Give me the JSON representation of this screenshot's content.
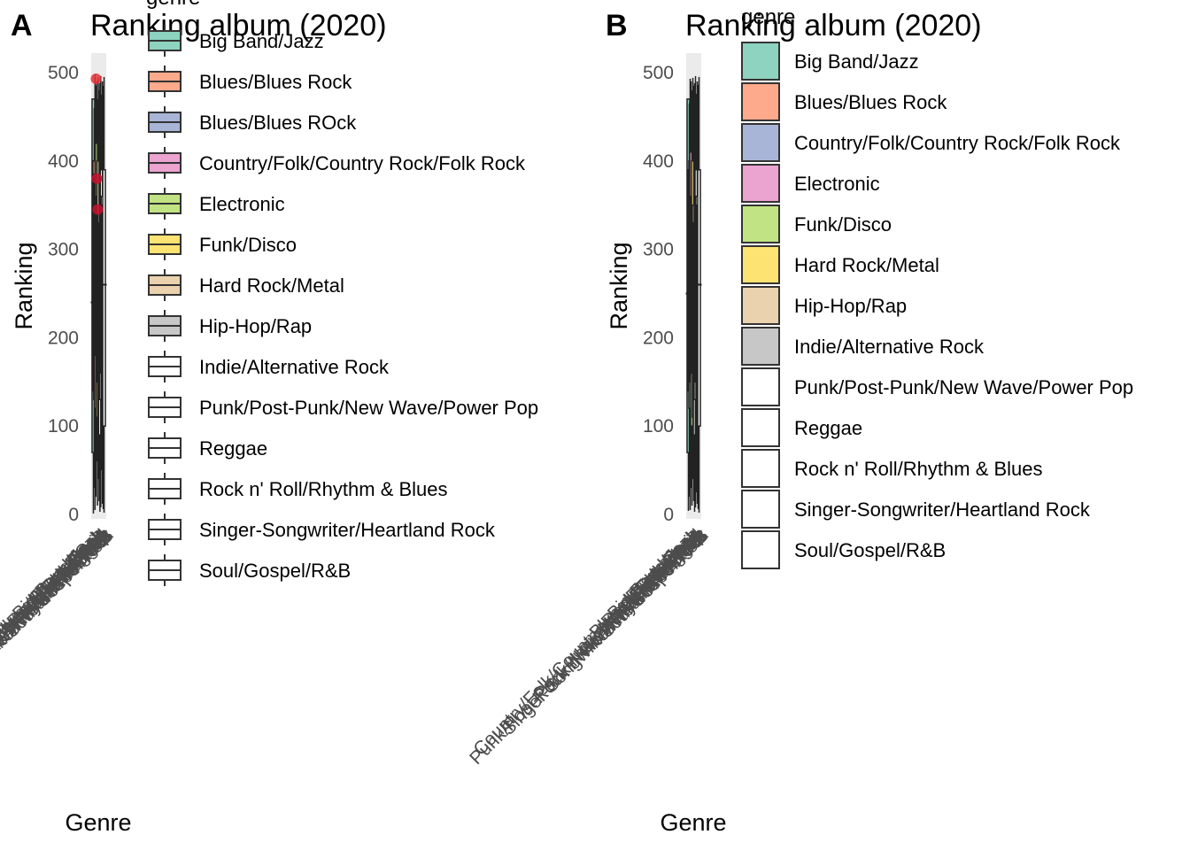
{
  "chart_data": [
    {
      "panel_tag": "A",
      "type": "box",
      "title": "Ranking album (2020)",
      "xlabel": "Genre",
      "ylabel": "Ranking",
      "ylim": [
        -5,
        522
      ],
      "yticks": [
        0,
        100,
        200,
        300,
        400,
        500
      ],
      "grid": false,
      "legend_title": "genre",
      "legend_placement": "right",
      "legend_key_style": "boxplot",
      "legend": [
        {
          "label": "Big Band/Jazz",
          "color": "#8ed3bf"
        },
        {
          "label": "Blues/Blues Rock",
          "color": "#fca98c"
        },
        {
          "label": "Blues/Blues ROck",
          "color": "#a9b5d6"
        },
        {
          "label": "Country/Folk/Country Rock/Folk Rock",
          "color": "#eba3cf"
        },
        {
          "label": "Electronic",
          "color": "#c1e383"
        },
        {
          "label": "Funk/Disco",
          "color": "#fde372"
        },
        {
          "label": "Hard Rock/Metal",
          "color": "#ead2ae"
        },
        {
          "label": "Hip-Hop/Rap",
          "color": "#c7c7c7"
        },
        {
          "label": "Indie/Alternative Rock",
          "color": "#ffffff"
        },
        {
          "label": "Punk/Post-Punk/New Wave/Power Pop",
          "color": "#ffffff"
        },
        {
          "label": "Reggae",
          "color": "#ffffff"
        },
        {
          "label": "Rock n' Roll/Rhythm & Blues",
          "color": "#ffffff"
        },
        {
          "label": "Singer-Songwriter/Heartland Rock",
          "color": "#ffffff"
        },
        {
          "label": "Soul/Gospel/R&B",
          "color": "#ffffff"
        }
      ],
      "boxes": [
        {
          "min": 1,
          "q1": 70,
          "median": 240,
          "q3": 470,
          "max": 470
        },
        {
          "min": 30,
          "q1": 140,
          "median": 280,
          "q3": 400,
          "max": 460
        },
        {
          "min": 5,
          "q1": 130,
          "median": 260,
          "q3": 385,
          "max": 498
        },
        {
          "min": 20,
          "q1": 120,
          "median": 250,
          "q3": 380,
          "max": 485
        },
        {
          "min": 60,
          "q1": 180,
          "median": 300,
          "q3": 420,
          "max": 490
        },
        {
          "min": 10,
          "q1": 110,
          "median": 230,
          "q3": 360,
          "max": 470
        },
        {
          "min": 40,
          "q1": 150,
          "median": 270,
          "q3": 400,
          "max": 494
        },
        {
          "min": 15,
          "q1": 100,
          "median": 220,
          "q3": 340,
          "max": 480
        },
        {
          "min": 3,
          "q1": 90,
          "median": 200,
          "q3": 330,
          "max": 488
        },
        {
          "min": 8,
          "q1": 130,
          "median": 250,
          "q3": 370,
          "max": 496
        },
        {
          "min": 50,
          "q1": 160,
          "median": 280,
          "q3": 390,
          "max": 475
        },
        {
          "min": 12,
          "q1": 120,
          "median": 240,
          "q3": 360,
          "max": 490
        },
        {
          "min": 6,
          "q1": 110,
          "median": 230,
          "q3": 350,
          "max": 485
        },
        {
          "min": 2,
          "q1": 100,
          "median": 260,
          "q3": 390,
          "max": 495
        }
      ],
      "outliers": [
        {
          "box": 0,
          "y": 493,
          "color": "#e8303a"
        },
        {
          "box": 1,
          "y": 380,
          "color": "#c8102e"
        },
        {
          "box": 2,
          "y": 345,
          "color": "#c8102e"
        }
      ]
    },
    {
      "panel_tag": "B",
      "type": "box",
      "title": "Ranking album (2020)",
      "xlabel": "Genre",
      "ylabel": "Ranking",
      "ylim": [
        -5,
        522
      ],
      "yticks": [
        0,
        100,
        200,
        300,
        400,
        500
      ],
      "grid": false,
      "legend_title": "genre",
      "legend_placement": "right",
      "legend_key_style": "filled-square",
      "legend": [
        {
          "label": "Big Band/Jazz",
          "color": "#8ed3bf"
        },
        {
          "label": "Blues/Blues Rock",
          "color": "#fca98c"
        },
        {
          "label": "Country/Folk/Country Rock/Folk Rock",
          "color": "#a9b5d6"
        },
        {
          "label": "Electronic",
          "color": "#eba3cf"
        },
        {
          "label": "Funk/Disco",
          "color": "#c1e383"
        },
        {
          "label": "Hard Rock/Metal",
          "color": "#fde372"
        },
        {
          "label": "Hip-Hop/Rap",
          "color": "#ead2ae"
        },
        {
          "label": "Indie/Alternative Rock",
          "color": "#c7c7c7"
        },
        {
          "label": "Punk/Post-Punk/New Wave/Power Pop",
          "color": "#ffffff"
        },
        {
          "label": "Reggae",
          "color": "#ffffff"
        },
        {
          "label": "Rock n' Roll/Rhythm & Blues",
          "color": "#ffffff"
        },
        {
          "label": "Singer-Songwriter/Heartland Rock",
          "color": "#ffffff"
        },
        {
          "label": "Soul/Gospel/R&B",
          "color": "#ffffff"
        }
      ],
      "boxes": [
        {
          "min": 4,
          "q1": 70,
          "median": 250,
          "q3": 470,
          "max": 470
        },
        {
          "min": 20,
          "q1": 140,
          "median": 270,
          "q3": 390,
          "max": 465
        },
        {
          "min": 5,
          "q1": 120,
          "median": 260,
          "q3": 400,
          "max": 493
        },
        {
          "min": 30,
          "q1": 150,
          "median": 280,
          "q3": 410,
          "max": 490
        },
        {
          "min": 10,
          "q1": 100,
          "median": 230,
          "q3": 360,
          "max": 480
        },
        {
          "min": 40,
          "q1": 160,
          "median": 280,
          "q3": 400,
          "max": 494
        },
        {
          "min": 15,
          "q1": 110,
          "median": 220,
          "q3": 350,
          "max": 485
        },
        {
          "min": 3,
          "q1": 90,
          "median": 210,
          "q3": 330,
          "max": 488
        },
        {
          "min": 8,
          "q1": 130,
          "median": 250,
          "q3": 380,
          "max": 496
        },
        {
          "min": 25,
          "q1": 150,
          "median": 270,
          "q3": 390,
          "max": 476
        },
        {
          "min": 12,
          "q1": 120,
          "median": 240,
          "q3": 360,
          "max": 490
        },
        {
          "min": 6,
          "q1": 110,
          "median": 230,
          "q3": 350,
          "max": 486
        },
        {
          "min": 2,
          "q1": 100,
          "median": 260,
          "q3": 390,
          "max": 495
        }
      ],
      "outliers": []
    }
  ]
}
